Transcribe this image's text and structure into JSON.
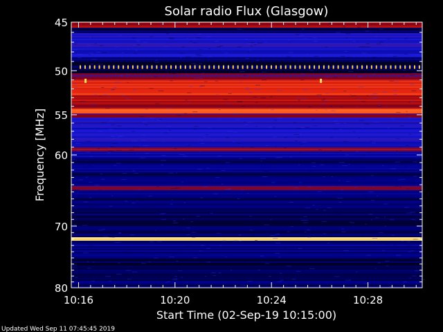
{
  "chart_data": {
    "type": "heatmap",
    "title": "Solar radio Flux (Glasgow)",
    "xlabel": "Start Time (02-Sep-19 10:15:00)",
    "ylabel": "Frequency [MHz]",
    "x_unit": "minutes after 10:15:00",
    "xlim": [
      0.7,
      15.25
    ],
    "ylim": [
      80,
      45
    ],
    "y_scale": "log",
    "x_ticks": [
      {
        "value": 1,
        "label": "10:16"
      },
      {
        "value": 5,
        "label": "10:20"
      },
      {
        "value": 9,
        "label": "10:24"
      },
      {
        "value": 13,
        "label": "10:28"
      }
    ],
    "y_ticks": [
      {
        "value": 45,
        "label": "45"
      },
      {
        "value": 50,
        "label": "50"
      },
      {
        "value": 55,
        "label": "55"
      },
      {
        "value": 60,
        "label": "60"
      },
      {
        "value": 70,
        "label": "70"
      },
      {
        "value": 80,
        "label": "80"
      }
    ],
    "colormap": [
      "#000000",
      "#00008b",
      "#1a1ad9",
      "#8b0010",
      "#e02010",
      "#ff6020",
      "#ffd050",
      "#ffffe0"
    ],
    "bands": [
      {
        "freq_from": 45.0,
        "freq_to": 45.6,
        "intensity": 0.45
      },
      {
        "freq_from": 45.6,
        "freq_to": 46.1,
        "intensity": 0.08
      },
      {
        "freq_from": 46.1,
        "freq_to": 47.5,
        "intensity": 0.27
      },
      {
        "freq_from": 47.5,
        "freq_to": 48.6,
        "intensity": 0.24
      },
      {
        "freq_from": 48.6,
        "freq_to": 49.1,
        "intensity": 0.12
      },
      {
        "freq_from": 49.1,
        "freq_to": 50.3,
        "intensity": 0.06
      },
      {
        "freq_from": 50.3,
        "freq_to": 51.0,
        "intensity": 0.38
      },
      {
        "freq_from": 51.0,
        "freq_to": 52.8,
        "intensity": 0.6
      },
      {
        "freq_from": 52.8,
        "freq_to": 53.8,
        "intensity": 0.52
      },
      {
        "freq_from": 53.8,
        "freq_to": 54.3,
        "intensity": 0.44
      },
      {
        "freq_from": 54.3,
        "freq_to": 54.9,
        "intensity": 0.68
      },
      {
        "freq_from": 54.9,
        "freq_to": 55.4,
        "intensity": 0.42
      },
      {
        "freq_from": 55.4,
        "freq_to": 56.0,
        "intensity": 0.28
      },
      {
        "freq_from": 56.0,
        "freq_to": 58.4,
        "intensity": 0.26
      },
      {
        "freq_from": 58.4,
        "freq_to": 59.1,
        "intensity": 0.2
      },
      {
        "freq_from": 59.1,
        "freq_to": 59.6,
        "intensity": 0.44
      },
      {
        "freq_from": 59.6,
        "freq_to": 60.3,
        "intensity": 0.18
      },
      {
        "freq_from": 60.3,
        "freq_to": 64.2,
        "intensity": 0.12
      },
      {
        "freq_from": 64.2,
        "freq_to": 64.8,
        "intensity": 0.43
      },
      {
        "freq_from": 64.8,
        "freq_to": 66.0,
        "intensity": 0.15
      },
      {
        "freq_from": 66.0,
        "freq_to": 71.8,
        "intensity": 0.1
      },
      {
        "freq_from": 71.8,
        "freq_to": 72.3,
        "intensity": 0.88
      },
      {
        "freq_from": 72.3,
        "freq_to": 75.0,
        "intensity": 0.13
      },
      {
        "freq_from": 75.0,
        "freq_to": 80.0,
        "intensity": 0.09
      }
    ],
    "dashed_line": {
      "freq": 49.6,
      "color": "#ffd050"
    },
    "spikes": [
      {
        "x": 1.29,
        "freq": 51.1
      },
      {
        "x": 11.05,
        "freq": 51.1
      }
    ],
    "grid": false,
    "legend": "none"
  },
  "footer": {
    "updated_text": "Updated Wed Sep 11 07:45:45 2019"
  }
}
